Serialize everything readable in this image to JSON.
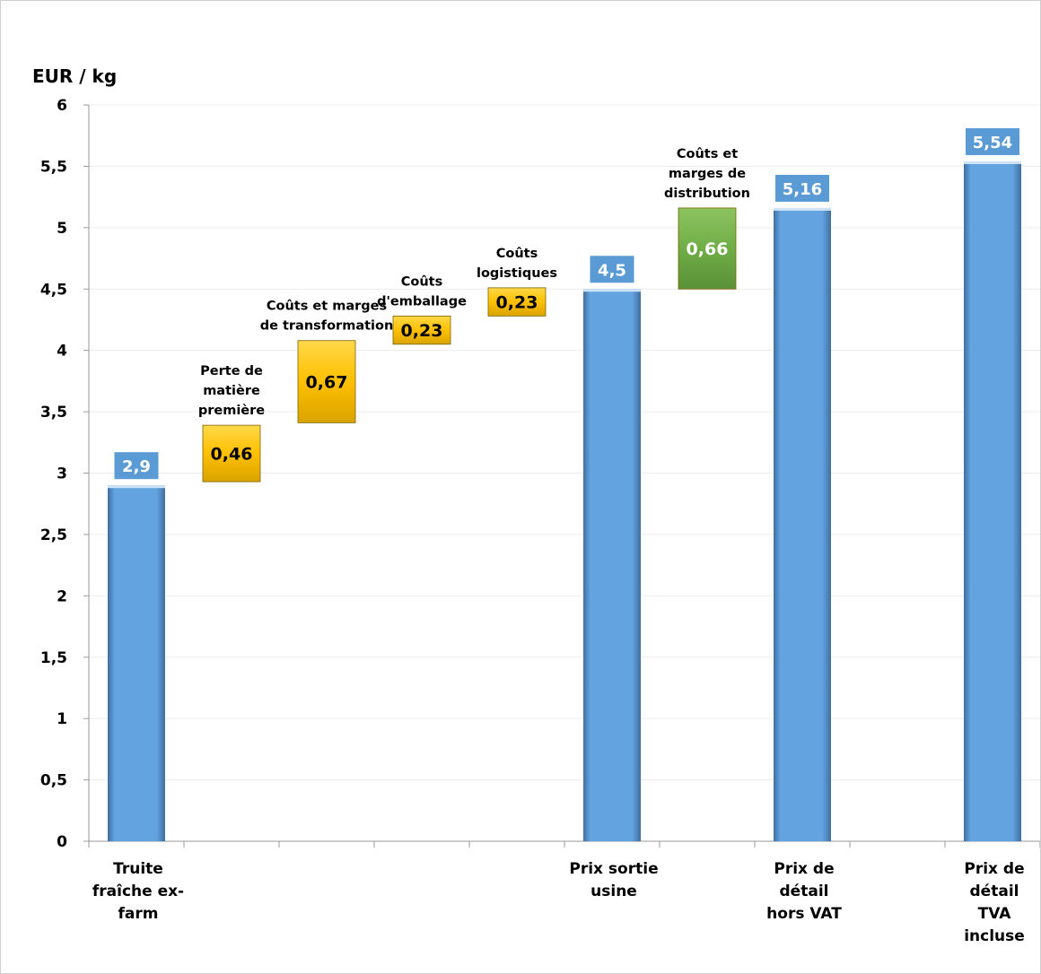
{
  "chart_data": {
    "type": "bar",
    "subtype": "waterfall",
    "ylabel": "EUR / kg",
    "ylim": [
      0,
      6
    ],
    "yticks": [
      "0",
      "0,5",
      "1",
      "1,5",
      "2",
      "2,5",
      "3",
      "3,5",
      "4",
      "4,5",
      "5",
      "5,5",
      "6"
    ],
    "grid": true,
    "bars": [
      {
        "kind": "total",
        "value": 2.9,
        "base": 0,
        "label": "2,9",
        "category": [
          "Truite",
          "fraîche ex-",
          "farm"
        ],
        "annotation": [],
        "color": "#63a3e0"
      },
      {
        "kind": "step",
        "value": 0.46,
        "base": 2.93,
        "label": "0,46",
        "category": [],
        "annotation": [
          "Perte de",
          "matière",
          "première"
        ],
        "color": "#ffc000"
      },
      {
        "kind": "step",
        "value": 0.67,
        "base": 3.41,
        "label": "0,67",
        "category": [],
        "annotation": [
          "Coûts et marges",
          "de transformation"
        ],
        "color": "#ffc000"
      },
      {
        "kind": "step",
        "value": 0.23,
        "base": 4.05,
        "label": "0,23",
        "category": [],
        "annotation": [
          "Coûts",
          "d'emballage"
        ],
        "color": "#ffc000"
      },
      {
        "kind": "step",
        "value": 0.23,
        "base": 4.28,
        "label": "0,23",
        "category": [],
        "annotation": [
          "Coûts",
          "logistiques"
        ],
        "color": "#ffc000"
      },
      {
        "kind": "total",
        "value": 4.5,
        "base": 0,
        "label": "4,5",
        "category": [
          "Prix sortie",
          "usine"
        ],
        "annotation": [],
        "color": "#63a3e0"
      },
      {
        "kind": "step",
        "value": 0.66,
        "base": 4.5,
        "label": "0,66",
        "category": [],
        "annotation": [
          "Coûts et",
          "marges de",
          "distribution"
        ],
        "color": "#70ad47"
      },
      {
        "kind": "total",
        "value": 5.16,
        "base": 0,
        "label": "5,16",
        "category": [
          "Prix de",
          "détail",
          "hors VAT"
        ],
        "annotation": [],
        "color": "#63a3e0"
      },
      {
        "kind": "gap",
        "value": 0,
        "base": 0,
        "label": "",
        "category": [],
        "annotation": [],
        "color": ""
      },
      {
        "kind": "total",
        "value": 5.54,
        "base": 0,
        "label": "5,54",
        "category": [
          "Prix de",
          "détail",
          "TVA",
          "incluse"
        ],
        "annotation": [],
        "color": "#63a3e0"
      }
    ]
  }
}
